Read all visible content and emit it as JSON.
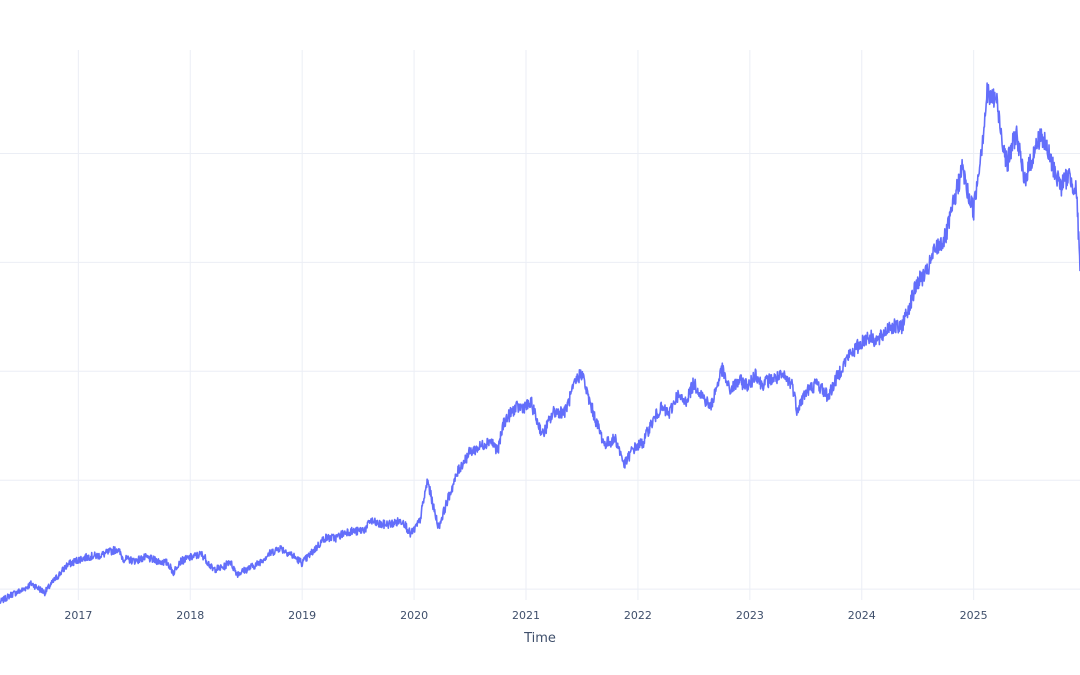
{
  "chart_data": {
    "type": "line",
    "title": "",
    "xlabel": "Time",
    "ylabel": "",
    "grid": true,
    "line_color": "#636efa",
    "grid_color": "#ebeef5",
    "text_color": "#3f4f6b",
    "xlim": [
      2016.3,
      2025.95
    ],
    "ylim": [
      0.9,
      5.95
    ],
    "x_ticks": [
      {
        "value": 2017,
        "label": "2017"
      },
      {
        "value": 2018,
        "label": "2018"
      },
      {
        "value": 2019,
        "label": "2019"
      },
      {
        "value": 2020,
        "label": "2020"
      },
      {
        "value": 2021,
        "label": "2021"
      },
      {
        "value": 2022,
        "label": "2022"
      },
      {
        "value": 2023,
        "label": "2023"
      },
      {
        "value": 2024,
        "label": "2024"
      },
      {
        "value": 2025,
        "label": "2025"
      }
    ],
    "y_gridlines": [
      1,
      2,
      3,
      4,
      5
    ],
    "series": [
      {
        "x": [
          2016.3,
          2016.4,
          2016.5,
          2016.58,
          2016.7,
          2016.8,
          2016.9,
          2017.0,
          2017.1,
          2017.2,
          2017.35,
          2017.4,
          2017.5,
          2017.6,
          2017.7,
          2017.8,
          2017.85,
          2017.9,
          2018.0,
          2018.1,
          2018.13,
          2018.2,
          2018.3,
          2018.35,
          2018.42,
          2018.5,
          2018.6,
          2018.7,
          2018.8,
          2018.9,
          2019.0,
          2019.1,
          2019.2,
          2019.3,
          2019.4,
          2019.5,
          2019.58,
          2019.6,
          2019.7,
          2019.8,
          2019.9,
          2019.97,
          2020.05,
          2020.12,
          2020.18,
          2020.22,
          2020.3,
          2020.4,
          2020.5,
          2020.58,
          2020.68,
          2020.75,
          2020.8,
          2020.9,
          2021.0,
          2021.05,
          2021.1,
          2021.15,
          2021.25,
          2021.35,
          2021.45,
          2021.5,
          2021.55,
          2021.62,
          2021.7,
          2021.8,
          2021.88,
          2021.95,
          2022.05,
          2022.1,
          2022.2,
          2022.28,
          2022.35,
          2022.42,
          2022.5,
          2022.58,
          2022.65,
          2022.75,
          2022.82,
          2022.9,
          2023.0,
          2023.05,
          2023.1,
          2023.2,
          2023.3,
          2023.38,
          2023.42,
          2023.5,
          2023.6,
          2023.7,
          2023.8,
          2023.88,
          2023.95,
          2024.05,
          2024.15,
          2024.25,
          2024.35,
          2024.42,
          2024.5,
          2024.58,
          2024.65,
          2024.75,
          2024.82,
          2024.9,
          2024.95,
          2025.0,
          2025.08,
          2025.12,
          2025.15,
          2025.2,
          2025.25,
          2025.3,
          2025.38,
          2025.45,
          2025.52,
          2025.6,
          2025.65,
          2025.7,
          2025.78,
          2025.85,
          2025.92,
          2025.95
        ],
        "y": [
          0.88,
          0.95,
          0.99,
          1.05,
          0.97,
          1.1,
          1.22,
          1.27,
          1.3,
          1.31,
          1.37,
          1.28,
          1.26,
          1.29,
          1.26,
          1.24,
          1.15,
          1.25,
          1.29,
          1.32,
          1.29,
          1.18,
          1.2,
          1.26,
          1.14,
          1.18,
          1.23,
          1.32,
          1.38,
          1.32,
          1.24,
          1.35,
          1.47,
          1.47,
          1.53,
          1.53,
          1.56,
          1.63,
          1.59,
          1.6,
          1.63,
          1.5,
          1.62,
          2.0,
          1.72,
          1.57,
          1.82,
          2.1,
          2.26,
          2.3,
          2.37,
          2.27,
          2.53,
          2.66,
          2.68,
          2.7,
          2.54,
          2.42,
          2.63,
          2.63,
          2.92,
          2.99,
          2.78,
          2.56,
          2.33,
          2.38,
          2.14,
          2.28,
          2.35,
          2.48,
          2.66,
          2.61,
          2.78,
          2.71,
          2.89,
          2.77,
          2.67,
          3.02,
          2.82,
          2.91,
          2.87,
          2.99,
          2.88,
          2.93,
          2.95,
          2.88,
          2.65,
          2.81,
          2.89,
          2.77,
          2.99,
          3.14,
          3.21,
          3.32,
          3.28,
          3.42,
          3.39,
          3.59,
          3.82,
          3.9,
          4.11,
          4.23,
          4.54,
          4.87,
          4.62,
          4.48,
          5.14,
          5.55,
          5.5,
          5.51,
          5.17,
          4.9,
          5.2,
          4.75,
          4.95,
          5.18,
          5.05,
          4.9,
          4.7,
          4.8,
          4.65,
          3.92
        ]
      }
    ]
  }
}
